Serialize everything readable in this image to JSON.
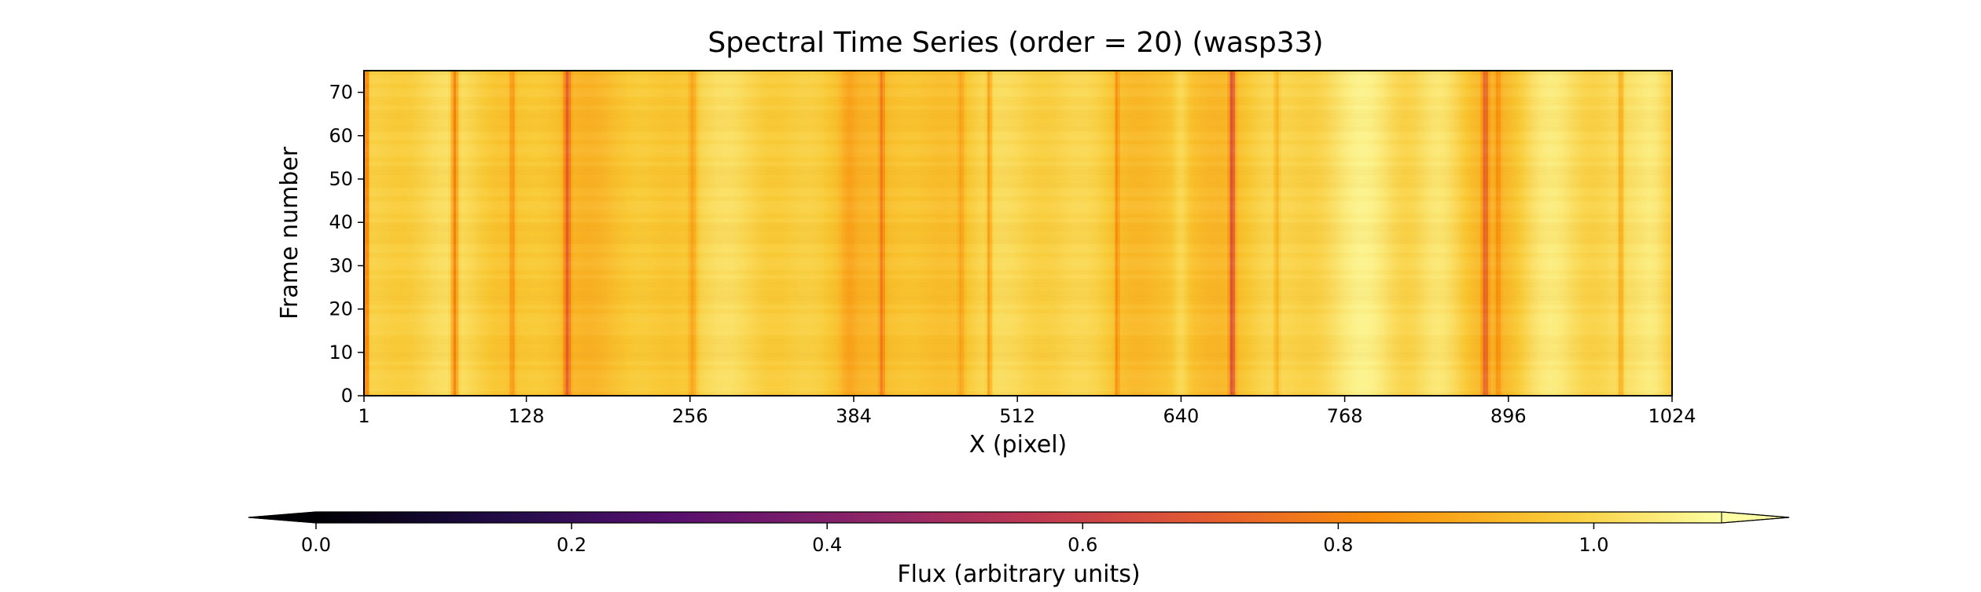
{
  "chart_data": {
    "type": "heatmap",
    "title": "Spectral Time Series (order = 20) (wasp33)",
    "xlabel": "X (pixel)",
    "ylabel": "Frame number",
    "xlim": [
      1,
      1024
    ],
    "ylim": [
      0,
      75
    ],
    "x_ticks": [
      1,
      128,
      256,
      384,
      512,
      640,
      768,
      896,
      1024
    ],
    "y_ticks": [
      0,
      10,
      20,
      30,
      40,
      50,
      60,
      70
    ],
    "n_frames": 75,
    "base_flux": 0.97,
    "absorption_lines": [
      {
        "x": 3,
        "depth": 0.25,
        "width": 1.5
      },
      {
        "x": 72,
        "depth": 0.22,
        "width": 2.5
      },
      {
        "x": 117,
        "depth": 0.12,
        "width": 2.0
      },
      {
        "x": 160,
        "depth": 0.24,
        "width": 2.5
      },
      {
        "x": 258,
        "depth": 0.1,
        "width": 3.0
      },
      {
        "x": 380,
        "depth": 0.05,
        "width": 6.0
      },
      {
        "x": 406,
        "depth": 0.16,
        "width": 2.0
      },
      {
        "x": 468,
        "depth": 0.08,
        "width": 2.5
      },
      {
        "x": 490,
        "depth": 0.14,
        "width": 1.8
      },
      {
        "x": 590,
        "depth": 0.14,
        "width": 1.5
      },
      {
        "x": 680,
        "depth": 0.3,
        "width": 2.2
      },
      {
        "x": 715,
        "depth": 0.08,
        "width": 2.0
      },
      {
        "x": 878,
        "depth": 0.22,
        "width": 2.5
      },
      {
        "x": 888,
        "depth": 0.1,
        "width": 2.0
      },
      {
        "x": 984,
        "depth": 0.12,
        "width": 2.0
      }
    ],
    "bright_bands": [
      {
        "x": 640,
        "boost": 0.05,
        "width": 6
      },
      {
        "x": 790,
        "boost": 0.06,
        "width": 30
      },
      {
        "x": 840,
        "boost": 0.08,
        "width": 20
      },
      {
        "x": 930,
        "boost": 0.07,
        "width": 25
      },
      {
        "x": 1010,
        "boost": 0.05,
        "width": 12
      }
    ],
    "colorbar": {
      "label": "Flux (arbitrary units)",
      "ticks": [
        "0.0",
        "0.2",
        "0.4",
        "0.6",
        "0.8",
        "1.0"
      ],
      "tick_values": [
        0.0,
        0.2,
        0.4,
        0.6,
        0.8,
        1.0
      ],
      "range": [
        0.0,
        1.1
      ],
      "extend": "both",
      "colormap": "inferno"
    }
  }
}
